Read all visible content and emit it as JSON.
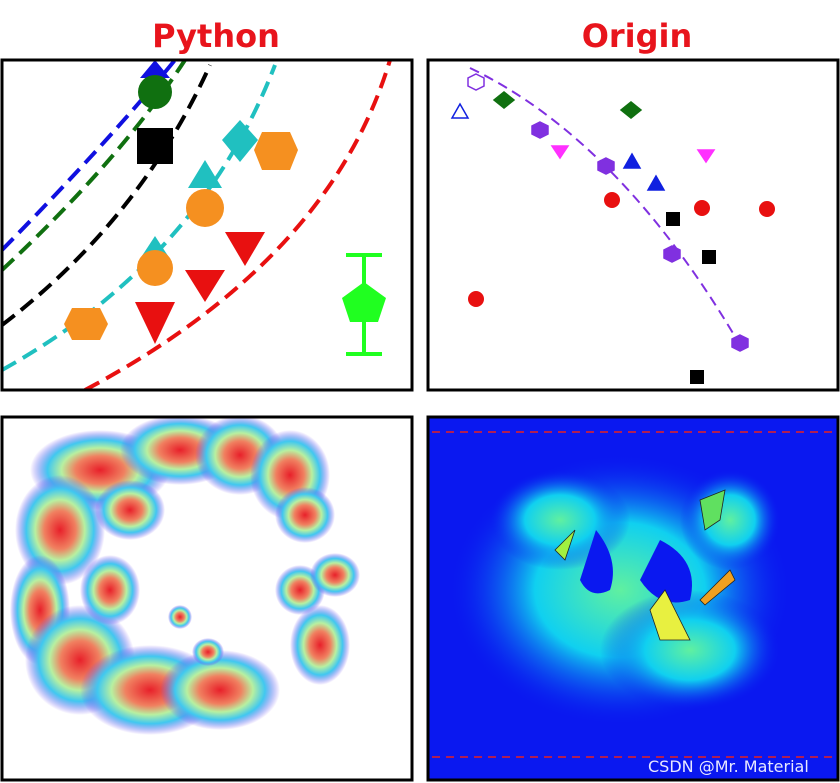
{
  "titles": {
    "left": "Python",
    "right": "Origin"
  },
  "watermark": "CSDN @Mr. Material"
}
